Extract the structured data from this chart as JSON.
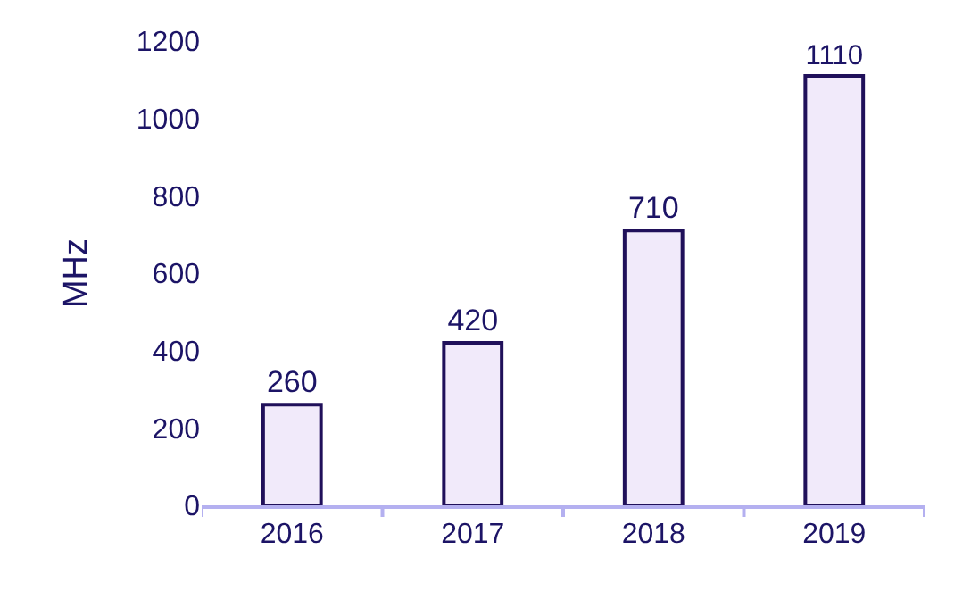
{
  "chart_data": {
    "type": "bar",
    "ylabel": "MHz",
    "categories": [
      "2016",
      "2017",
      "2018",
      "2019"
    ],
    "values": [
      260,
      420,
      710,
      1110
    ],
    "color": "#f1eafa",
    "ylim": [
      0,
      1200
    ],
    "yticks": [
      0,
      200,
      400,
      600,
      800,
      1000,
      1200
    ],
    "data_labels": true
  }
}
